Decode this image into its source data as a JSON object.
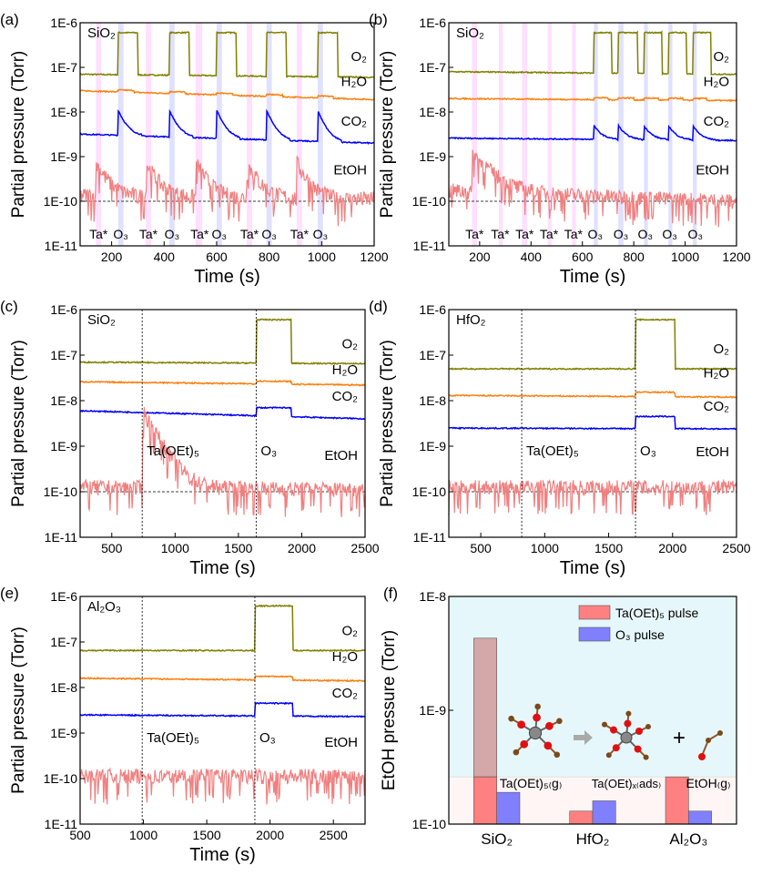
{
  "colors": {
    "O2": "#808000",
    "H2O": "#ff7f0e",
    "CO2": "#0000ff",
    "EtOH": "#f08080",
    "ta_band": "#ff99ff",
    "o3_band": "#9999ff",
    "bar_ta": "#ff8080",
    "bar_o3": "#8080ff",
    "inset_bg": "#e6f7fb"
  },
  "chart_data": [
    {
      "id": "a",
      "type": "line",
      "panel_label": "(a)",
      "substrate": "SiO₂",
      "xlabel": "Time (s)",
      "ylabel": "Partial pressure (Torr)",
      "xlim": [
        80,
        1200
      ],
      "xticks": [
        200,
        400,
        600,
        800,
        1000,
        1200
      ],
      "ylim": [
        1e-11,
        1e-06
      ],
      "yscale": "log",
      "yticks": [
        "1E-11",
        "1E-10",
        "1E-9",
        "1E-8",
        "1E-7",
        "1E-6"
      ],
      "ta_pulses": [
        [
          140,
          160
        ],
        [
          330,
          350
        ],
        [
          520,
          545
        ],
        [
          715,
          735
        ],
        [
          905,
          925
        ]
      ],
      "o3_pulses": [
        [
          225,
          245
        ],
        [
          420,
          440
        ],
        [
          600,
          620
        ],
        [
          790,
          810
        ],
        [
          985,
          1005
        ]
      ],
      "pulse_labels": [
        {
          "text": "Ta*",
          "x": 150
        },
        {
          "text": "O₃",
          "x": 235
        },
        {
          "text": "Ta*",
          "x": 340
        },
        {
          "text": "O₃",
          "x": 430
        },
        {
          "text": "Ta*",
          "x": 535
        },
        {
          "text": "O₃",
          "x": 610
        },
        {
          "text": "Ta*",
          "x": 725
        },
        {
          "text": "O₃",
          "x": 800
        },
        {
          "text": "Ta*",
          "x": 915
        },
        {
          "text": "O₃",
          "x": 995
        }
      ],
      "baseline_dashed": 1e-10,
      "series": [
        {
          "name": "O₂",
          "base": [
            7e-08,
            6e-08
          ],
          "peak": 6e-07,
          "events": "o3_step"
        },
        {
          "name": "H₂O",
          "base": [
            3e-08,
            1.9e-08
          ],
          "peak_factor": 1.1,
          "events": "o3_small"
        },
        {
          "name": "CO₂",
          "base": [
            3.2e-09,
            2e-09
          ],
          "peak": 1.1e-08,
          "events": "o3_spike"
        },
        {
          "name": "EtOH",
          "base": [
            1.1e-10,
            9e-11
          ],
          "peak": 6e-10,
          "events": "ta_spike",
          "noisy": true
        }
      ],
      "series_label_pos": {
        "O₂": 1.4e-07,
        "H₂O": 3.8e-08,
        "CO₂": 5e-09,
        "EtOH": 4e-10
      }
    },
    {
      "id": "b",
      "type": "line",
      "panel_label": "(b)",
      "substrate": "SiO₂",
      "xlabel": "Time (s)",
      "ylabel": "Partial pressure (Torr)",
      "xlim": [
        80,
        1200
      ],
      "xticks": [
        200,
        400,
        600,
        800,
        1000,
        1200
      ],
      "ylim": [
        1e-11,
        1e-06
      ],
      "yscale": "log",
      "yticks": [
        "1E-11",
        "1E-10",
        "1E-9",
        "1E-8",
        "1E-7",
        "1E-6"
      ],
      "ta_pulses": [
        [
          170,
          190
        ],
        [
          275,
          290
        ],
        [
          365,
          385
        ],
        [
          465,
          480
        ],
        [
          560,
          575
        ]
      ],
      "o3_pulses": [
        [
          645,
          660
        ],
        [
          740,
          760
        ],
        [
          840,
          855
        ],
        [
          935,
          950
        ],
        [
          1030,
          1045
        ]
      ],
      "pulse_labels": [
        {
          "text": "Ta*",
          "x": 180
        },
        {
          "text": "Ta*",
          "x": 280
        },
        {
          "text": "Ta*",
          "x": 375
        },
        {
          "text": "Ta*",
          "x": 470
        },
        {
          "text": "Ta*",
          "x": 565
        },
        {
          "text": "O₃",
          "x": 650
        },
        {
          "text": "O₃",
          "x": 750
        },
        {
          "text": "O₃",
          "x": 845
        },
        {
          "text": "O₃",
          "x": 940
        },
        {
          "text": "O₃",
          "x": 1040
        }
      ],
      "baseline_dashed": 1e-10,
      "series": [
        {
          "name": "O₂",
          "base": [
            8e-08,
            7e-08
          ],
          "peak": 6e-07,
          "events": "o3_step"
        },
        {
          "name": "H₂O",
          "base": [
            2e-08,
            1.8e-08
          ],
          "peak_factor": 1.1,
          "events": "o3_small"
        },
        {
          "name": "CO₂",
          "base": [
            2.6e-09,
            2.3e-09
          ],
          "peak": 5e-09,
          "events": "o3_spike"
        },
        {
          "name": "EtOH",
          "base": [
            1.4e-10,
            8e-11
          ],
          "peak": 1e-09,
          "events": "first_ta_spike",
          "noisy": true
        }
      ],
      "series_label_pos": {
        "O₂": 1.4e-07,
        "H₂O": 3.8e-08,
        "CO₂": 5e-09,
        "EtOH": 4e-10
      }
    },
    {
      "id": "c",
      "type": "line",
      "panel_label": "(c)",
      "substrate": "SiO₂",
      "xlabel": "Time (s)",
      "ylabel": "Partial pressure (Torr)",
      "xlim": [
        250,
        2500
      ],
      "xticks": [
        500,
        1000,
        1500,
        2000,
        2500
      ],
      "ylim": [
        1e-11,
        1e-06
      ],
      "yscale": "log",
      "yticks": [
        "1E-11",
        "1E-10",
        "1E-9",
        "1E-8",
        "1E-7",
        "1E-6"
      ],
      "vlines": [
        {
          "x": 740,
          "label": "Ta(OEt)₅"
        },
        {
          "x": 1640,
          "label": "O₃"
        }
      ],
      "o3_window": [
        1640,
        1920
      ],
      "baseline_dashed": 1e-10,
      "series": [
        {
          "name": "O₂",
          "base": [
            7e-08,
            6.5e-08
          ],
          "peak": 6e-07,
          "events": "long_o3"
        },
        {
          "name": "H₂O",
          "base": [
            2.6e-08,
            2.2e-08
          ],
          "peak_factor": 1.15,
          "events": "long_o3"
        },
        {
          "name": "CO₂",
          "base": [
            6e-09,
            4e-09
          ],
          "peak": 7e-09,
          "events": "long_o3"
        },
        {
          "name": "EtOH",
          "base": [
            1e-10,
            9e-11
          ],
          "peak": 5e-09,
          "events": "ta_decay",
          "noisy": true
        }
      ],
      "series_label_pos": {
        "O₂": 1.4e-07,
        "H₂O": 3.8e-08,
        "CO₂": 1e-08,
        "EtOH": 5e-10
      }
    },
    {
      "id": "d",
      "type": "line",
      "panel_label": "(d)",
      "substrate": "HfO₂",
      "xlabel": "Time (s)",
      "ylabel": "Partial pressure (Torr)",
      "xlim": [
        250,
        2500
      ],
      "xticks": [
        500,
        1000,
        1500,
        2000,
        2500
      ],
      "ylim": [
        1e-11,
        1e-06
      ],
      "yscale": "log",
      "yticks": [
        "1E-11",
        "1E-10",
        "1E-9",
        "1E-8",
        "1E-7",
        "1E-6"
      ],
      "vlines": [
        {
          "x": 820,
          "label": "Ta(OEt)₅"
        },
        {
          "x": 1710,
          "label": "O₃"
        }
      ],
      "o3_window": [
        1710,
        2020
      ],
      "baseline_dashed": 1e-10,
      "series": [
        {
          "name": "O₂",
          "base": [
            5e-08,
            5e-08
          ],
          "peak": 6e-07,
          "events": "long_o3"
        },
        {
          "name": "H₂O",
          "base": [
            1.3e-08,
            1.2e-08
          ],
          "peak_factor": 1.25,
          "events": "long_o3"
        },
        {
          "name": "CO₂",
          "base": [
            2.5e-09,
            2.4e-09
          ],
          "peak": 4.5e-09,
          "events": "long_o3"
        },
        {
          "name": "EtOH",
          "base": [
            1e-10,
            1e-10
          ],
          "peak": 1e-10,
          "events": "none",
          "noisy": true
        }
      ],
      "series_label_pos": {
        "O₂": 1.1e-07,
        "H₂O": 3.2e-08,
        "CO₂": 6e-09,
        "EtOH": 6e-10
      }
    },
    {
      "id": "e",
      "type": "line",
      "panel_label": "(e)",
      "substrate": "Al₂O₃",
      "xlabel": "Time (s)",
      "ylabel": "Partial pressure (Torr)",
      "xlim": [
        500,
        2750
      ],
      "xticks": [
        500,
        1000,
        1500,
        2000,
        2500
      ],
      "ylim": [
        1e-11,
        1e-06
      ],
      "yscale": "log",
      "yticks": [
        "1E-11",
        "1E-10",
        "1E-9",
        "1E-8",
        "1E-7",
        "1E-6"
      ],
      "vlines": [
        {
          "x": 990,
          "label": "Ta(OEt)₅"
        },
        {
          "x": 1880,
          "label": "O₃"
        }
      ],
      "o3_window": [
        1880,
        2180
      ],
      "series": [
        {
          "name": "O₂",
          "base": [
            6.5e-08,
            6.5e-08
          ],
          "peak": 6.2e-07,
          "events": "long_o3"
        },
        {
          "name": "H₂O",
          "base": [
            1.6e-08,
            1.4e-08
          ],
          "peak_factor": 1.2,
          "events": "long_o3"
        },
        {
          "name": "CO₂",
          "base": [
            2.5e-09,
            2.3e-09
          ],
          "peak": 4.5e-09,
          "events": "long_o3"
        },
        {
          "name": "EtOH",
          "base": [
            9e-11,
            9e-11
          ],
          "peak": 1e-10,
          "events": "none",
          "noisy": true
        }
      ],
      "series_label_pos": {
        "O₂": 1.4e-07,
        "H₂O": 3.8e-08,
        "CO₂": 6e-09,
        "EtOH": 5e-10
      }
    },
    {
      "id": "f",
      "type": "bar",
      "panel_label": "(f)",
      "ylabel": "EtOH pressure (Torr)",
      "yscale": "log",
      "ylim": [
        1e-10,
        1e-08
      ],
      "yticks": [
        "1E-10",
        "1E-9",
        "1E-8"
      ],
      "categories": [
        "SiO₂",
        "HfO₂",
        "Al₂O₃"
      ],
      "series": [
        {
          "name": "Ta(OEt)₅ pulse",
          "values": [
            4.3e-09,
            1.3e-10,
            2.6e-10
          ]
        },
        {
          "name": "O₃ pulse",
          "values": [
            1.9e-10,
            1.6e-10,
            1.3e-10
          ]
        }
      ],
      "background_level": 2.6e-10,
      "legend_position": "top-right",
      "scheme_labels": [
        "Ta(OEt)₅₍g₎",
        "Ta(OEt)ₓ₍ads₎",
        "EtOH₍g₎"
      ],
      "scheme_operator": "+"
    }
  ]
}
